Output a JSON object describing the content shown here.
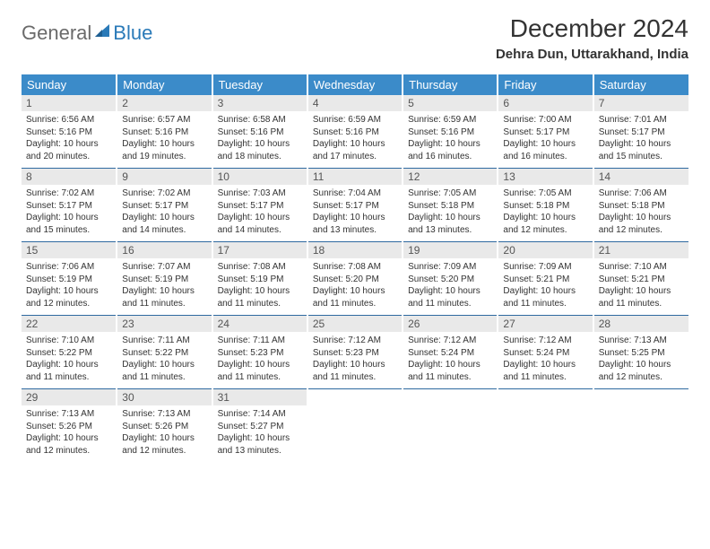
{
  "brand": {
    "text_grey": "General",
    "text_blue": "Blue",
    "shape_color": "#2a7ab8"
  },
  "title": "December 2024",
  "location": "Dehra Dun, Uttarakhand, India",
  "colors": {
    "header_bg": "#3b8bc9",
    "header_text": "#ffffff",
    "daynum_bg": "#e9e9e9",
    "row_border": "#2f6aa0",
    "body_text": "#333333"
  },
  "weekdays": [
    "Sunday",
    "Monday",
    "Tuesday",
    "Wednesday",
    "Thursday",
    "Friday",
    "Saturday"
  ],
  "weeks": [
    [
      {
        "n": "1",
        "sr": "Sunrise: 6:56 AM",
        "ss": "Sunset: 5:16 PM",
        "dl": "Daylight: 10 hours and 20 minutes."
      },
      {
        "n": "2",
        "sr": "Sunrise: 6:57 AM",
        "ss": "Sunset: 5:16 PM",
        "dl": "Daylight: 10 hours and 19 minutes."
      },
      {
        "n": "3",
        "sr": "Sunrise: 6:58 AM",
        "ss": "Sunset: 5:16 PM",
        "dl": "Daylight: 10 hours and 18 minutes."
      },
      {
        "n": "4",
        "sr": "Sunrise: 6:59 AM",
        "ss": "Sunset: 5:16 PM",
        "dl": "Daylight: 10 hours and 17 minutes."
      },
      {
        "n": "5",
        "sr": "Sunrise: 6:59 AM",
        "ss": "Sunset: 5:16 PM",
        "dl": "Daylight: 10 hours and 16 minutes."
      },
      {
        "n": "6",
        "sr": "Sunrise: 7:00 AM",
        "ss": "Sunset: 5:17 PM",
        "dl": "Daylight: 10 hours and 16 minutes."
      },
      {
        "n": "7",
        "sr": "Sunrise: 7:01 AM",
        "ss": "Sunset: 5:17 PM",
        "dl": "Daylight: 10 hours and 15 minutes."
      }
    ],
    [
      {
        "n": "8",
        "sr": "Sunrise: 7:02 AM",
        "ss": "Sunset: 5:17 PM",
        "dl": "Daylight: 10 hours and 15 minutes."
      },
      {
        "n": "9",
        "sr": "Sunrise: 7:02 AM",
        "ss": "Sunset: 5:17 PM",
        "dl": "Daylight: 10 hours and 14 minutes."
      },
      {
        "n": "10",
        "sr": "Sunrise: 7:03 AM",
        "ss": "Sunset: 5:17 PM",
        "dl": "Daylight: 10 hours and 14 minutes."
      },
      {
        "n": "11",
        "sr": "Sunrise: 7:04 AM",
        "ss": "Sunset: 5:17 PM",
        "dl": "Daylight: 10 hours and 13 minutes."
      },
      {
        "n": "12",
        "sr": "Sunrise: 7:05 AM",
        "ss": "Sunset: 5:18 PM",
        "dl": "Daylight: 10 hours and 13 minutes."
      },
      {
        "n": "13",
        "sr": "Sunrise: 7:05 AM",
        "ss": "Sunset: 5:18 PM",
        "dl": "Daylight: 10 hours and 12 minutes."
      },
      {
        "n": "14",
        "sr": "Sunrise: 7:06 AM",
        "ss": "Sunset: 5:18 PM",
        "dl": "Daylight: 10 hours and 12 minutes."
      }
    ],
    [
      {
        "n": "15",
        "sr": "Sunrise: 7:06 AM",
        "ss": "Sunset: 5:19 PM",
        "dl": "Daylight: 10 hours and 12 minutes."
      },
      {
        "n": "16",
        "sr": "Sunrise: 7:07 AM",
        "ss": "Sunset: 5:19 PM",
        "dl": "Daylight: 10 hours and 11 minutes."
      },
      {
        "n": "17",
        "sr": "Sunrise: 7:08 AM",
        "ss": "Sunset: 5:19 PM",
        "dl": "Daylight: 10 hours and 11 minutes."
      },
      {
        "n": "18",
        "sr": "Sunrise: 7:08 AM",
        "ss": "Sunset: 5:20 PM",
        "dl": "Daylight: 10 hours and 11 minutes."
      },
      {
        "n": "19",
        "sr": "Sunrise: 7:09 AM",
        "ss": "Sunset: 5:20 PM",
        "dl": "Daylight: 10 hours and 11 minutes."
      },
      {
        "n": "20",
        "sr": "Sunrise: 7:09 AM",
        "ss": "Sunset: 5:21 PM",
        "dl": "Daylight: 10 hours and 11 minutes."
      },
      {
        "n": "21",
        "sr": "Sunrise: 7:10 AM",
        "ss": "Sunset: 5:21 PM",
        "dl": "Daylight: 10 hours and 11 minutes."
      }
    ],
    [
      {
        "n": "22",
        "sr": "Sunrise: 7:10 AM",
        "ss": "Sunset: 5:22 PM",
        "dl": "Daylight: 10 hours and 11 minutes."
      },
      {
        "n": "23",
        "sr": "Sunrise: 7:11 AM",
        "ss": "Sunset: 5:22 PM",
        "dl": "Daylight: 10 hours and 11 minutes."
      },
      {
        "n": "24",
        "sr": "Sunrise: 7:11 AM",
        "ss": "Sunset: 5:23 PM",
        "dl": "Daylight: 10 hours and 11 minutes."
      },
      {
        "n": "25",
        "sr": "Sunrise: 7:12 AM",
        "ss": "Sunset: 5:23 PM",
        "dl": "Daylight: 10 hours and 11 minutes."
      },
      {
        "n": "26",
        "sr": "Sunrise: 7:12 AM",
        "ss": "Sunset: 5:24 PM",
        "dl": "Daylight: 10 hours and 11 minutes."
      },
      {
        "n": "27",
        "sr": "Sunrise: 7:12 AM",
        "ss": "Sunset: 5:24 PM",
        "dl": "Daylight: 10 hours and 11 minutes."
      },
      {
        "n": "28",
        "sr": "Sunrise: 7:13 AM",
        "ss": "Sunset: 5:25 PM",
        "dl": "Daylight: 10 hours and 12 minutes."
      }
    ],
    [
      {
        "n": "29",
        "sr": "Sunrise: 7:13 AM",
        "ss": "Sunset: 5:26 PM",
        "dl": "Daylight: 10 hours and 12 minutes."
      },
      {
        "n": "30",
        "sr": "Sunrise: 7:13 AM",
        "ss": "Sunset: 5:26 PM",
        "dl": "Daylight: 10 hours and 12 minutes."
      },
      {
        "n": "31",
        "sr": "Sunrise: 7:14 AM",
        "ss": "Sunset: 5:27 PM",
        "dl": "Daylight: 10 hours and 13 minutes."
      },
      null,
      null,
      null,
      null
    ]
  ]
}
